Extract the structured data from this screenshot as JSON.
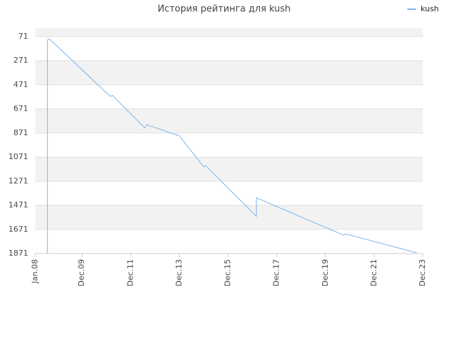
{
  "chart_data": {
    "type": "line",
    "title": "История рейтинга для kush",
    "x": [
      "2008-07",
      "2008-07",
      "2008-08",
      "2011-02",
      "2011-03",
      "2012-07",
      "2012-08",
      "2013-12",
      "2014-12",
      "2015-01",
      "2017-02",
      "2017-02",
      "2020-09",
      "2020-10",
      "2023-09"
    ],
    "series": [
      {
        "name": "kush",
        "color": "#7cb5ec",
        "values": [
          1871,
          100,
          90,
          568,
          558,
          830,
          802,
          895,
          1152,
          1141,
          1562,
          1409,
          1719,
          1709,
          1865
        ]
      }
    ],
    "xlim": [
      "2008-01",
      "2023-12"
    ],
    "xticks": [
      {
        "value": "2008-01",
        "label": "Jan.08"
      },
      {
        "value": "2009-12",
        "label": "Dec.09"
      },
      {
        "value": "2011-12",
        "label": "Dec.11"
      },
      {
        "value": "2013-12",
        "label": "Dec.13"
      },
      {
        "value": "2015-12",
        "label": "Dec.15"
      },
      {
        "value": "2017-12",
        "label": "Dec.17"
      },
      {
        "value": "2019-12",
        "label": "Dec.19"
      },
      {
        "value": "2021-12",
        "label": "Dec.21"
      },
      {
        "value": "2023-12",
        "label": "Dec.23"
      }
    ],
    "ylim": [
      1871,
      1
    ],
    "yticks": [
      71,
      271,
      471,
      671,
      871,
      1071,
      1271,
      1471,
      1671,
      1871
    ],
    "grid": true,
    "legend": "top-right"
  }
}
